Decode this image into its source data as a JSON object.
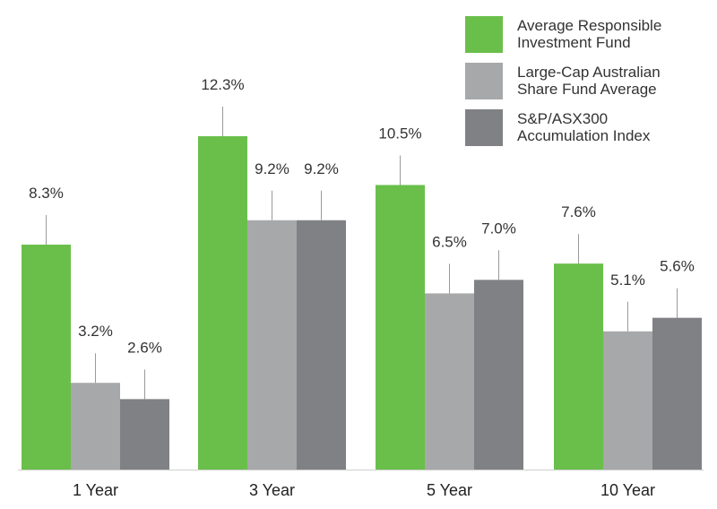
{
  "chart_data": {
    "type": "bar",
    "categories": [
      "1 Year",
      "3 Year",
      "5 Year",
      "10 Year"
    ],
    "series": [
      {
        "name": "Average Responsible Investment Fund",
        "values": [
          8.3,
          12.3,
          10.5,
          7.6
        ],
        "labels": [
          "8.3%",
          "12.3%",
          "10.5%",
          "7.6%"
        ],
        "color": "#6abf4b"
      },
      {
        "name": "Large-Cap Australian Share Fund Average",
        "values": [
          3.2,
          9.2,
          6.5,
          5.1
        ],
        "labels": [
          "3.2%",
          "9.2%",
          "6.5%",
          "5.1%"
        ],
        "color": "#a7a8aa"
      },
      {
        "name": "S&P/ASX300 Accumulation Index",
        "values": [
          2.6,
          9.2,
          7.0,
          5.6
        ],
        "labels": [
          "2.6%",
          "9.2%",
          "7.0%",
          "5.6%"
        ],
        "color": "#808184"
      }
    ],
    "legend": {
      "position": "top-right",
      "entries": [
        {
          "lines": [
            "Average Responsible",
            "Investment Fund"
          ],
          "color": "#6abf4b"
        },
        {
          "lines": [
            "Large-Cap Australian",
            "Share Fund Average"
          ],
          "color": "#a7a8aa"
        },
        {
          "lines": [
            "S&P/ASX300",
            "Accumulation Index"
          ],
          "color": "#808184"
        }
      ]
    },
    "ylim": [
      0,
      12.3
    ],
    "grid": false,
    "title": "",
    "xlabel": "",
    "ylabel": ""
  }
}
